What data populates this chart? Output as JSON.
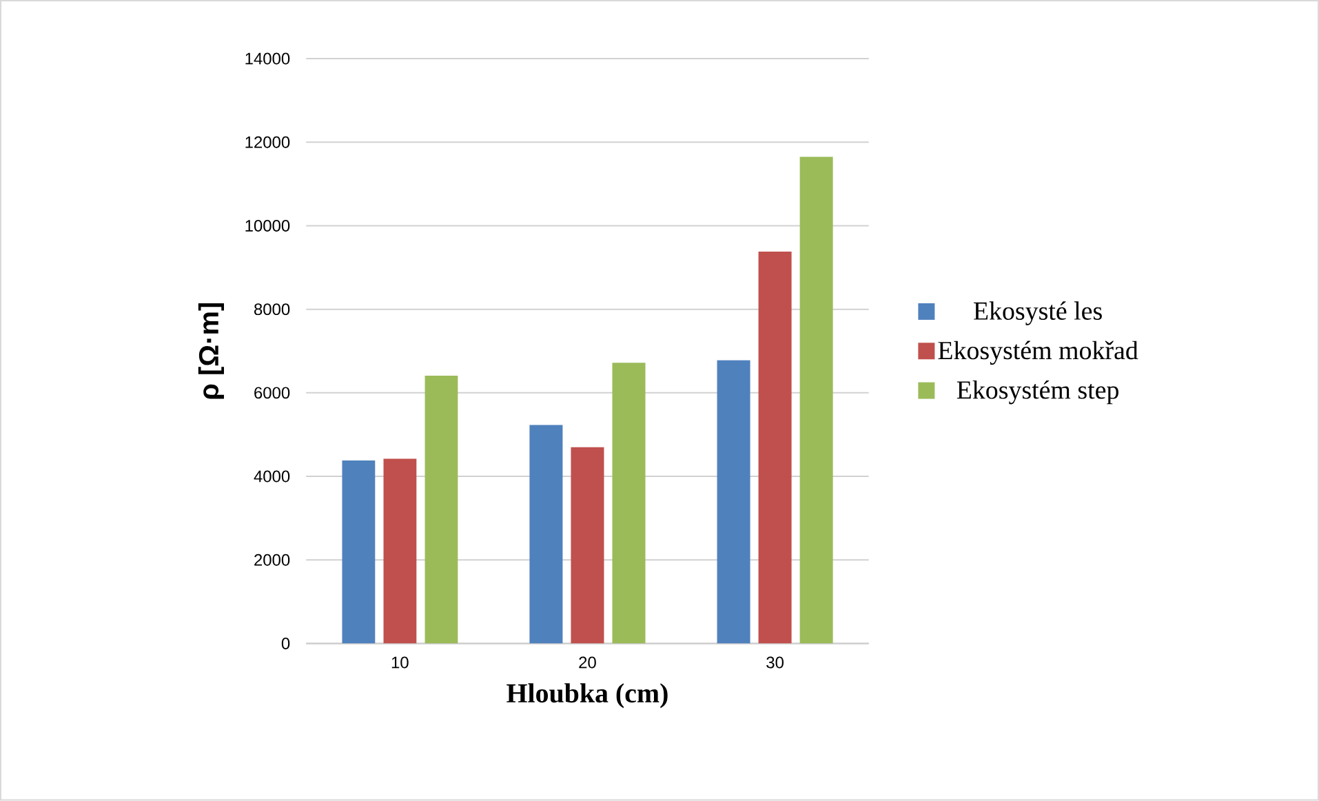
{
  "chart_data": {
    "type": "bar",
    "xlabel": "Hloubka (cm)",
    "ylabel": "ρ [Ω·m]",
    "categories": [
      "10",
      "20",
      "30"
    ],
    "series": [
      {
        "name": "Ekosysté les",
        "color": "#4f81bd",
        "values": [
          4380,
          5230,
          6780
        ]
      },
      {
        "name": "Ekosystém mokřad",
        "color": "#c0504d",
        "values": [
          4420,
          4700,
          9380
        ]
      },
      {
        "name": "Ekosystém step",
        "color": "#9bbb59",
        "values": [
          6410,
          6720,
          11650
        ]
      }
    ],
    "ylim": [
      0,
      14000
    ],
    "yticks": [
      0,
      2000,
      4000,
      6000,
      8000,
      10000,
      12000,
      14000
    ],
    "grid": "y",
    "legend": "right"
  }
}
